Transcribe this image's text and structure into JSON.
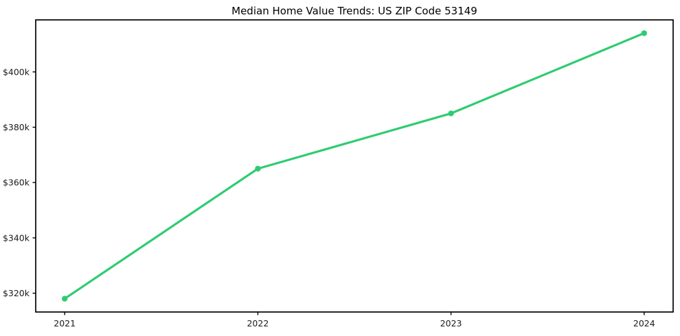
{
  "chart_data": {
    "type": "line",
    "title": "Median Home Value Trends: US ZIP Code 53149",
    "x": [
      2021,
      2022,
      2023,
      2024
    ],
    "series": [
      {
        "name": "Median home value",
        "values": [
          318000,
          365000,
          385000,
          414000
        ]
      }
    ],
    "xlabel": "",
    "ylabel": "",
    "xlim": [
      2020.85,
      2024.15
    ],
    "ylim": [
      313200,
      418800
    ],
    "xticks": {
      "values": [
        2021,
        2022,
        2023,
        2024
      ],
      "labels": [
        "2021",
        "2022",
        "2023",
        "2024"
      ]
    },
    "yticks": {
      "values": [
        320000,
        340000,
        360000,
        380000,
        400000
      ],
      "labels": [
        "$320k",
        "$340k",
        "$360k",
        "$380k",
        "$400k"
      ]
    },
    "grid": false,
    "legend": "none",
    "line_color": "#2ecc71",
    "marker": "circle",
    "background": "#ffffff",
    "text_color": "#1a1a1a",
    "spine_color": "#000000"
  }
}
